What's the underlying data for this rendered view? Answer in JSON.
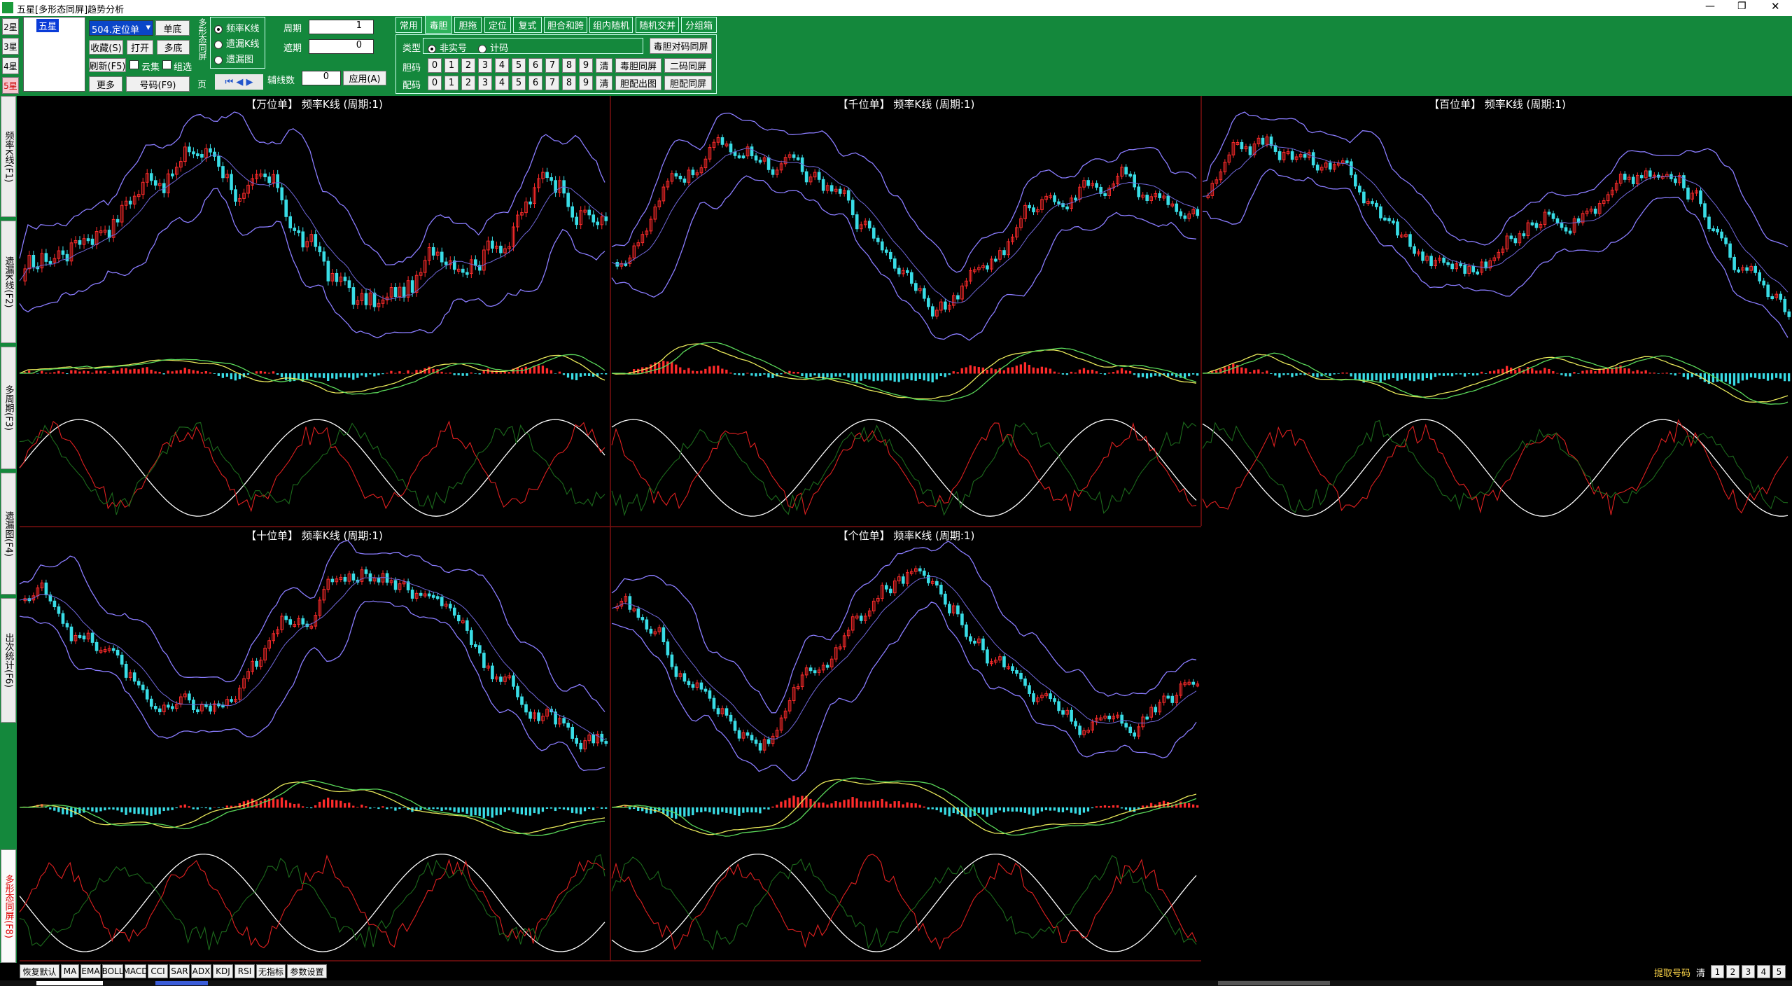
{
  "window": {
    "title": "五星[多形态同屏]趋势分析"
  },
  "star_tabs": [
    "2星",
    "3星",
    "4星",
    "5星"
  ],
  "tree": [
    "五星"
  ],
  "combo": "504.定位单",
  "buttons": {
    "single": "单底",
    "fav": "收藏(S)",
    "open": "打开",
    "multi": "多底",
    "refresh": "刷新(F5)",
    "more": "更多",
    "number": "号码(F9)"
  },
  "checks": [
    "云集",
    "组选"
  ],
  "mode_group": {
    "label": "多形态同屏",
    "options": [
      "频率K线",
      "遗漏K线",
      "遗漏图"
    ]
  },
  "page_label": "页",
  "fields": [
    {
      "label": "周期",
      "value": "1"
    },
    {
      "label": "遮期",
      "value": "0"
    }
  ],
  "marker": {
    "label": "辅线数",
    "value": "0"
  },
  "apply": "应用(A)",
  "tabs": [
    "常用",
    "毒胆",
    "胆拖",
    "定位",
    "复式",
    "胆合和跨",
    "组内随机",
    "随机交并",
    "分组箱"
  ],
  "type_label": "类型",
  "type_options": [
    "非实号",
    "计码"
  ],
  "pair_button": "毒胆对码同屏",
  "rows": [
    {
      "label": "胆码",
      "digits": [
        "0",
        "1",
        "2",
        "3",
        "4",
        "5",
        "6",
        "7",
        "8",
        "9"
      ],
      "clear": "清",
      "buttons": [
        "毒胆同屏",
        "二码同屏"
      ]
    },
    {
      "label": "配码",
      "digits": [
        "0",
        "1",
        "2",
        "3",
        "4",
        "5",
        "6",
        "7",
        "8",
        "9"
      ],
      "clear": "清",
      "buttons": [
        "胆配出图",
        "胆配同屏"
      ]
    }
  ],
  "side_tabs": [
    "频率K线(F1)",
    "遗漏K线(F2)",
    "多周期(F3)",
    "遗漏图(F4)",
    "出次统计(F6)",
    "多形态同屏(F8)"
  ],
  "panels": [
    "【万位单】 频率K线 (周期:1)",
    "【千位单】 频率K线 (周期:1)",
    "【百位单】 频率K线 (周期:1)",
    "【十位单】 频率K线 (周期:1)",
    "【个位单】 频率K线 (周期:1)"
  ],
  "bottom_buttons": [
    "恢复默认",
    "MA",
    "EMA",
    "BOLL",
    "MACD",
    "CCI",
    "SAR",
    "ADX",
    "KDJ",
    "RSI",
    "无指标",
    "参数设置"
  ],
  "pick": {
    "label": "提取号码",
    "clear": "清",
    "pages": [
      "1",
      "2",
      "3",
      "4",
      "5"
    ]
  }
}
